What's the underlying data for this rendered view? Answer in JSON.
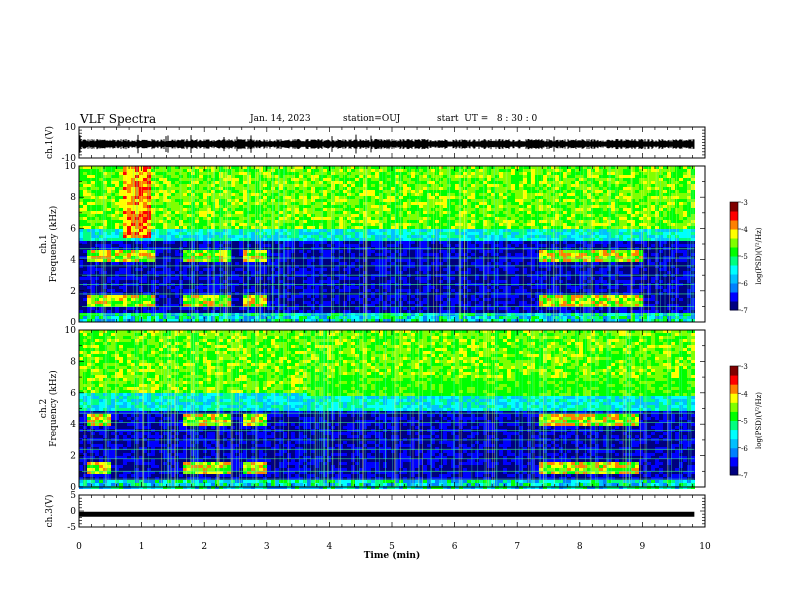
{
  "header": {
    "title": "VLF Spectra",
    "date": "Jan. 14, 2023",
    "station": "station=OUJ",
    "start": "start  UT =   8 : 30 : 0"
  },
  "chart_data": [
    {
      "id": "ch1-waveform",
      "type": "line",
      "ylabel": "ch.1(V)",
      "ylim": [
        -10,
        10
      ],
      "yticks": [
        "10",
        "-10"
      ],
      "xlim": [
        0,
        10
      ],
      "data_end": 9.83,
      "series": [
        {
          "values_description_free": true,
          "x": [
            0,
            1,
            2,
            3,
            4,
            5,
            6,
            7,
            8,
            9,
            9.83
          ],
          "y": [
            -1.0,
            -1.2,
            -1.1,
            -1.0,
            -0.9,
            -1.0,
            -1.1,
            -1.2,
            -1.0,
            -0.9,
            -1.0
          ]
        }
      ]
    },
    {
      "id": "ch1-spectrogram",
      "type": "heatmap",
      "ylabel": "ch.1\nFrequency (kHz)",
      "ylim": [
        0,
        10
      ],
      "yticks": [
        "0",
        "2",
        "4",
        "6",
        "8",
        "10"
      ],
      "xlim": [
        0,
        10
      ],
      "colorbar": {
        "label": "log(PSD)(V²/Hz)",
        "range": [
          -7,
          -3
        ],
        "ticks": [
          "-3",
          "-4",
          "-5",
          "-6",
          "-7"
        ]
      },
      "features": {
        "background_upper_band_khz": [
          6,
          10
        ],
        "sferic_cutoff_khz": 5.5,
        "hiss_bursts_min": [
          [
            0.1,
            1.2
          ],
          [
            1.6,
            2.4
          ],
          [
            2.6,
            3.0
          ],
          [
            7.3,
            9.0
          ]
        ],
        "hiss_bands_khz": [
          1.5,
          4.3
        ]
      }
    },
    {
      "id": "ch2-spectrogram",
      "type": "heatmap",
      "ylabel": "ch.2\nFrequency (kHz)",
      "ylim": [
        0,
        10
      ],
      "yticks": [
        "0",
        "2",
        "4",
        "6",
        "8",
        "10"
      ],
      "xlim": [
        0,
        10
      ],
      "colorbar": {
        "label": "log(PSD)(V²/Hz)",
        "range": [
          -7,
          -3
        ],
        "ticks": [
          "-3",
          "-4",
          "-5",
          "-6",
          "-7"
        ]
      },
      "features": {
        "background_upper_band_khz": [
          6,
          10
        ],
        "enhanced_band_khz": [
          5.8,
          7.0
        ],
        "enhanced_band_min": [
          3.6,
          9.8
        ],
        "hiss_bursts_min": [
          [
            0.1,
            0.5
          ],
          [
            1.6,
            2.4
          ],
          [
            2.6,
            3.0
          ],
          [
            7.3,
            8.9
          ]
        ],
        "hiss_bands_khz": [
          1.3,
          4.3
        ]
      }
    },
    {
      "id": "ch3-waveform",
      "type": "line",
      "ylabel": "ch.3(V)",
      "ylim": [
        -5,
        5
      ],
      "yticks": [
        "5",
        "0",
        "-5"
      ],
      "xlim": [
        0,
        10
      ],
      "data_end": 9.83,
      "series": [
        {
          "x": [
            0,
            9.83
          ],
          "y": [
            -1.0,
            -1.0
          ]
        }
      ]
    }
  ],
  "xaxis": {
    "label": "Time  (min)",
    "ticks": [
      "0",
      "1",
      "2",
      "3",
      "4",
      "5",
      "6",
      "7",
      "8",
      "9",
      "10"
    ]
  },
  "colors": {
    "spectrum": [
      "#000080",
      "#0000ff",
      "#0080ff",
      "#00c0ff",
      "#00ffff",
      "#00ff80",
      "#00ff00",
      "#80ff00",
      "#ffff00",
      "#ff8000",
      "#ff0000",
      "#800000"
    ]
  }
}
